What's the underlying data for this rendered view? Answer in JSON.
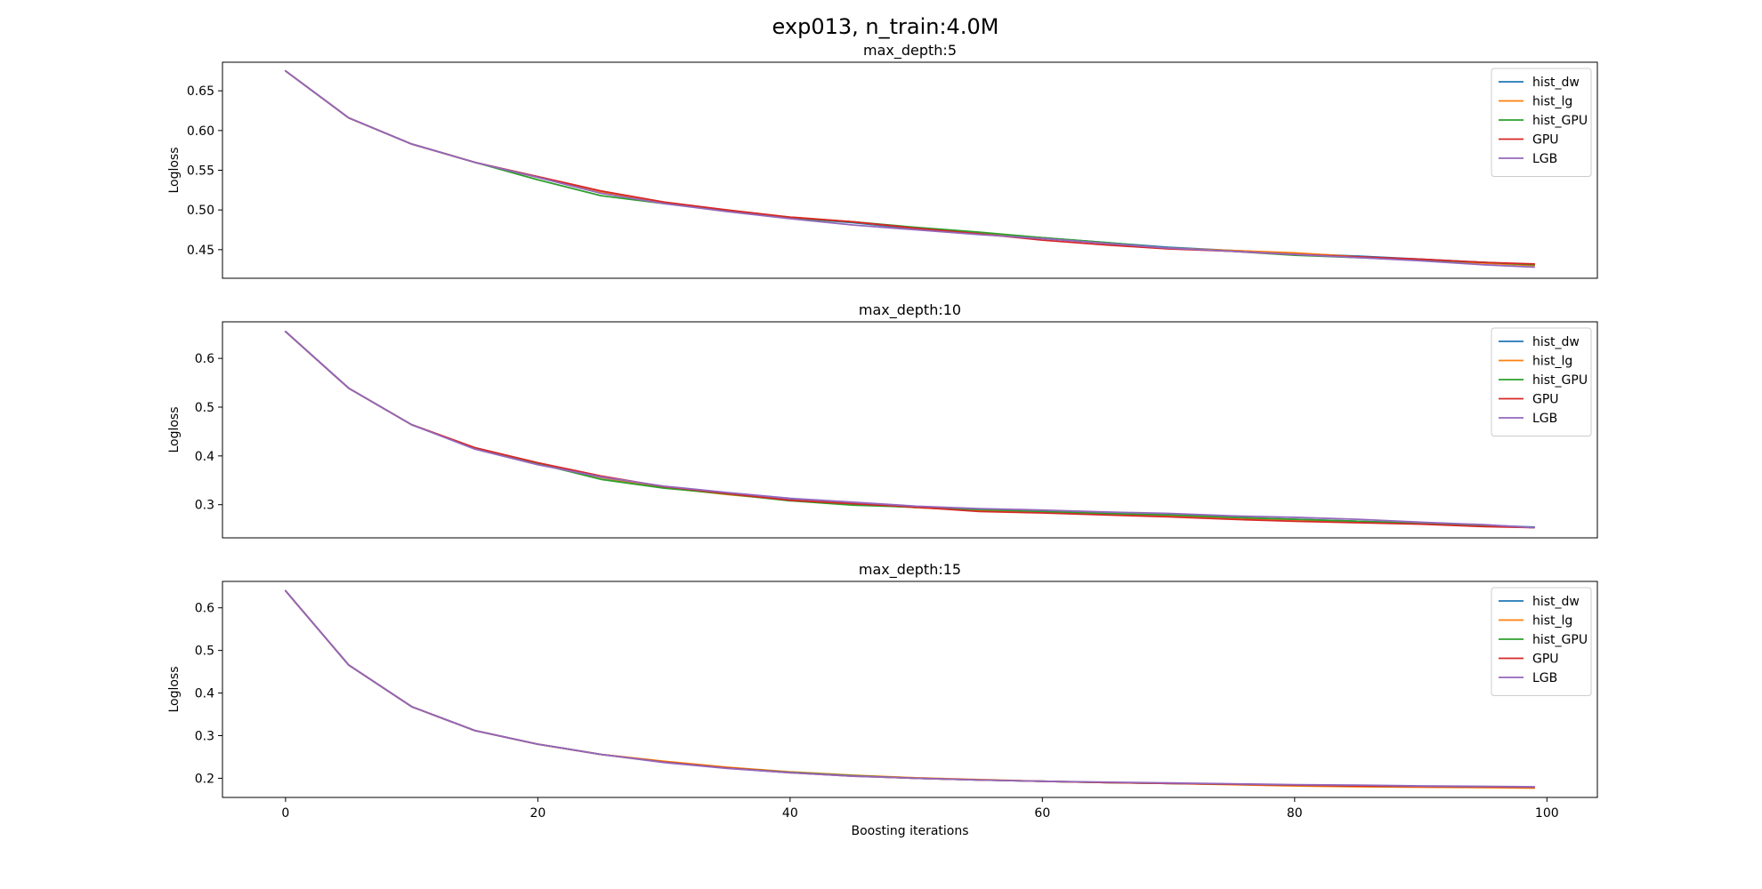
{
  "figure": {
    "title": "exp013, n_train:4.0M"
  },
  "chart_data": [
    {
      "type": "line",
      "title": "max_depth:5",
      "xlabel": "",
      "ylabel": "Logloss",
      "xlim": [
        -5,
        104
      ],
      "ylim": [
        0.414,
        0.686
      ],
      "xticks": [
        0,
        20,
        40,
        60,
        80,
        100
      ],
      "show_xticks": false,
      "yticks": [
        0.45,
        0.5,
        0.55,
        0.6,
        0.65
      ],
      "ytick_labels": [
        "0.45",
        "0.50",
        "0.55",
        "0.60",
        "0.65"
      ],
      "legend": "top-right",
      "grid": false,
      "x": [
        0,
        5,
        10,
        15,
        20,
        25,
        30,
        35,
        40,
        45,
        50,
        55,
        60,
        65,
        70,
        75,
        80,
        85,
        90,
        95,
        99
      ],
      "series": [
        {
          "name": "hist_dw",
          "color": "#1f77b4",
          "values": [
            0.675,
            0.616,
            0.583,
            0.56,
            0.541,
            0.522,
            0.509,
            0.499,
            0.49,
            0.484,
            0.476,
            0.47,
            0.465,
            0.459,
            0.453,
            0.449,
            0.445,
            0.442,
            0.438,
            0.434,
            0.431
          ]
        },
        {
          "name": "hist_lg",
          "color": "#ff7f0e",
          "values": [
            0.675,
            0.616,
            0.583,
            0.56,
            0.541,
            0.522,
            0.509,
            0.499,
            0.491,
            0.485,
            0.477,
            0.471,
            0.465,
            0.458,
            0.452,
            0.449,
            0.446,
            0.441,
            0.437,
            0.433,
            0.43
          ]
        },
        {
          "name": "hist_GPU",
          "color": "#2ca02c",
          "values": [
            0.675,
            0.616,
            0.583,
            0.56,
            0.538,
            0.518,
            0.508,
            0.499,
            0.49,
            0.485,
            0.478,
            0.472,
            0.465,
            0.459,
            0.452,
            0.448,
            0.443,
            0.44,
            0.437,
            0.434,
            0.431
          ]
        },
        {
          "name": "GPU",
          "color": "#d62728",
          "values": [
            0.675,
            0.616,
            0.583,
            0.56,
            0.542,
            0.524,
            0.51,
            0.5,
            0.491,
            0.485,
            0.477,
            0.47,
            0.462,
            0.456,
            0.451,
            0.448,
            0.444,
            0.441,
            0.438,
            0.434,
            0.432
          ]
        },
        {
          "name": "LGB",
          "color": "#9467bd",
          "values": [
            0.675,
            0.616,
            0.583,
            0.56,
            0.541,
            0.521,
            0.508,
            0.498,
            0.489,
            0.481,
            0.475,
            0.469,
            0.464,
            0.458,
            0.452,
            0.448,
            0.444,
            0.44,
            0.436,
            0.431,
            0.428
          ]
        }
      ]
    },
    {
      "type": "line",
      "title": "max_depth:10",
      "xlabel": "",
      "ylabel": "Logloss",
      "xlim": [
        -5,
        104
      ],
      "ylim": [
        0.232,
        0.675
      ],
      "xticks": [
        0,
        20,
        40,
        60,
        80,
        100
      ],
      "show_xticks": false,
      "yticks": [
        0.3,
        0.4,
        0.5,
        0.6
      ],
      "ytick_labels": [
        "0.3",
        "0.4",
        "0.5",
        "0.6"
      ],
      "legend": "top-right",
      "grid": false,
      "x": [
        0,
        5,
        10,
        15,
        20,
        25,
        30,
        35,
        40,
        45,
        50,
        55,
        60,
        65,
        70,
        75,
        80,
        85,
        90,
        95,
        99
      ],
      "series": [
        {
          "name": "hist_dw",
          "color": "#1f77b4",
          "values": [
            0.655,
            0.539,
            0.464,
            0.416,
            0.384,
            0.356,
            0.335,
            0.322,
            0.31,
            0.302,
            0.294,
            0.289,
            0.286,
            0.282,
            0.279,
            0.274,
            0.27,
            0.266,
            0.262,
            0.258,
            0.254
          ]
        },
        {
          "name": "hist_lg",
          "color": "#ff7f0e",
          "values": [
            0.655,
            0.539,
            0.464,
            0.416,
            0.384,
            0.356,
            0.335,
            0.321,
            0.309,
            0.302,
            0.294,
            0.288,
            0.285,
            0.281,
            0.278,
            0.273,
            0.269,
            0.265,
            0.261,
            0.257,
            0.253
          ]
        },
        {
          "name": "hist_GPU",
          "color": "#2ca02c",
          "values": [
            0.655,
            0.539,
            0.464,
            0.416,
            0.384,
            0.352,
            0.334,
            0.322,
            0.308,
            0.299,
            0.295,
            0.29,
            0.286,
            0.282,
            0.279,
            0.274,
            0.27,
            0.266,
            0.262,
            0.258,
            0.253
          ]
        },
        {
          "name": "GPU",
          "color": "#d62728",
          "values": [
            0.655,
            0.539,
            0.464,
            0.417,
            0.386,
            0.359,
            0.337,
            0.323,
            0.309,
            0.302,
            0.295,
            0.286,
            0.283,
            0.279,
            0.275,
            0.27,
            0.266,
            0.263,
            0.26,
            0.255,
            0.253
          ]
        },
        {
          "name": "LGB",
          "color": "#9467bd",
          "values": [
            0.655,
            0.539,
            0.464,
            0.414,
            0.382,
            0.357,
            0.338,
            0.325,
            0.313,
            0.305,
            0.297,
            0.292,
            0.289,
            0.285,
            0.282,
            0.277,
            0.274,
            0.27,
            0.264,
            0.259,
            0.253
          ]
        }
      ]
    },
    {
      "type": "line",
      "title": "max_depth:15",
      "xlabel": "Boosting iterations",
      "ylabel": "Logloss",
      "xlim": [
        -5,
        104
      ],
      "ylim": [
        0.155,
        0.662
      ],
      "xticks": [
        0,
        20,
        40,
        60,
        80,
        100
      ],
      "show_xticks": true,
      "yticks": [
        0.2,
        0.3,
        0.4,
        0.5,
        0.6
      ],
      "ytick_labels": [
        "0.2",
        "0.3",
        "0.4",
        "0.5",
        "0.6"
      ],
      "legend": "top-right",
      "grid": false,
      "x": [
        0,
        5,
        10,
        15,
        20,
        25,
        30,
        35,
        40,
        45,
        50,
        55,
        60,
        65,
        70,
        75,
        80,
        85,
        90,
        95,
        99
      ],
      "series": [
        {
          "name": "hist_dw",
          "color": "#1f77b4",
          "values": [
            0.64,
            0.466,
            0.368,
            0.312,
            0.28,
            0.256,
            0.239,
            0.225,
            0.214,
            0.206,
            0.2,
            0.196,
            0.193,
            0.19,
            0.188,
            0.186,
            0.184,
            0.182,
            0.181,
            0.18,
            0.179
          ]
        },
        {
          "name": "hist_lg",
          "color": "#ff7f0e",
          "values": [
            0.64,
            0.466,
            0.368,
            0.312,
            0.28,
            0.256,
            0.24,
            0.226,
            0.215,
            0.207,
            0.201,
            0.197,
            0.193,
            0.19,
            0.188,
            0.185,
            0.182,
            0.18,
            0.179,
            0.178,
            0.177
          ]
        },
        {
          "name": "hist_GPU",
          "color": "#2ca02c",
          "values": [
            0.64,
            0.466,
            0.368,
            0.312,
            0.28,
            0.256,
            0.238,
            0.224,
            0.214,
            0.206,
            0.2,
            0.196,
            0.193,
            0.19,
            0.188,
            0.186,
            0.184,
            0.182,
            0.181,
            0.18,
            0.179
          ]
        },
        {
          "name": "GPU",
          "color": "#d62728",
          "values": [
            0.64,
            0.466,
            0.368,
            0.312,
            0.28,
            0.256,
            0.238,
            0.224,
            0.213,
            0.205,
            0.2,
            0.196,
            0.193,
            0.19,
            0.188,
            0.186,
            0.184,
            0.182,
            0.181,
            0.18,
            0.179
          ]
        },
        {
          "name": "LGB",
          "color": "#9467bd",
          "values": [
            0.64,
            0.466,
            0.368,
            0.312,
            0.28,
            0.256,
            0.237,
            0.223,
            0.213,
            0.205,
            0.2,
            0.196,
            0.193,
            0.191,
            0.189,
            0.187,
            0.185,
            0.184,
            0.182,
            0.181,
            0.18
          ]
        }
      ]
    }
  ]
}
